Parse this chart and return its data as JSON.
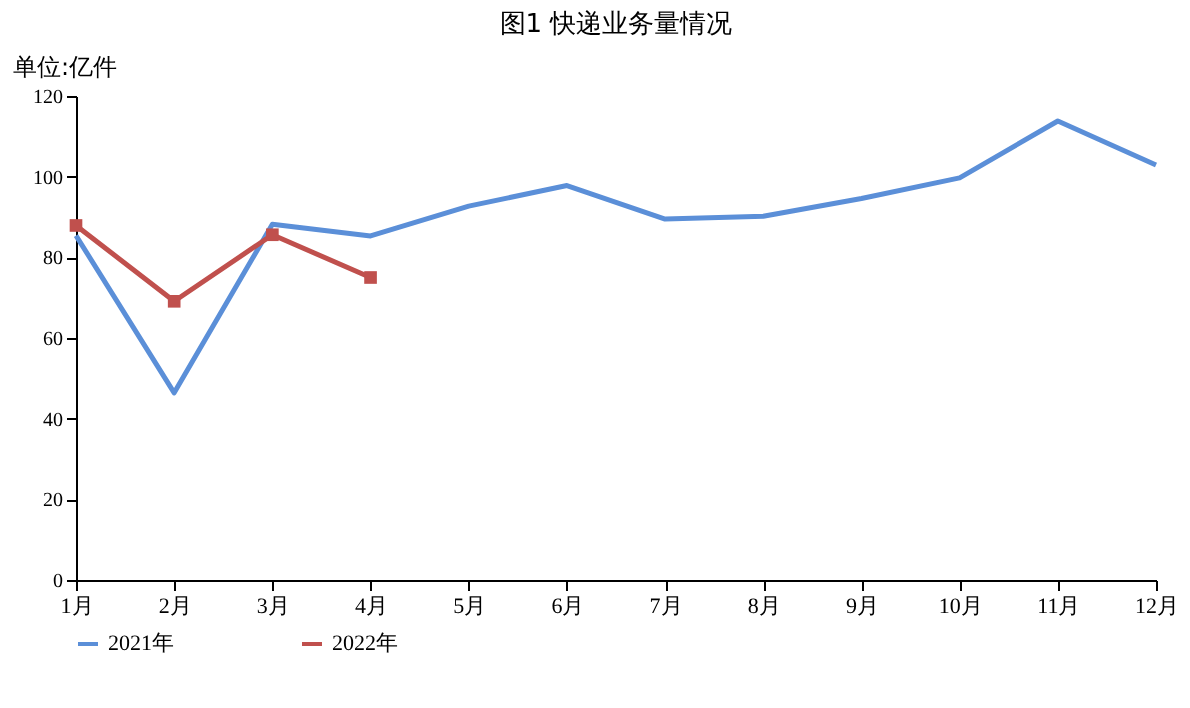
{
  "chart_data": {
    "type": "line",
    "title": "图1   快递业务量情况",
    "ylabel": "单位:亿件",
    "categories": [
      "1月",
      "2月",
      "3月",
      "4月",
      "5月",
      "6月",
      "7月",
      "8月",
      "9月",
      "10月",
      "11月",
      "12月"
    ],
    "series": [
      {
        "name": "2021年",
        "color": "#5b8fd8",
        "marker": "none",
        "values": [
          85.4,
          46.4,
          88.2,
          85.3,
          92.7,
          97.8,
          89.5,
          90.2,
          94.6,
          99.7,
          113.8,
          102.9
        ]
      },
      {
        "name": "2022年",
        "color": "#c0504d",
        "marker": "square",
        "values": [
          87.9,
          69.1,
          85.6,
          75.0,
          null,
          null,
          null,
          null,
          null,
          null,
          null,
          null
        ]
      }
    ],
    "ylim": [
      0,
      120
    ],
    "yticks": [
      0,
      20,
      40,
      60,
      80,
      100,
      120
    ],
    "grid": false,
    "legend": "bottom",
    "line_style": "solid"
  }
}
